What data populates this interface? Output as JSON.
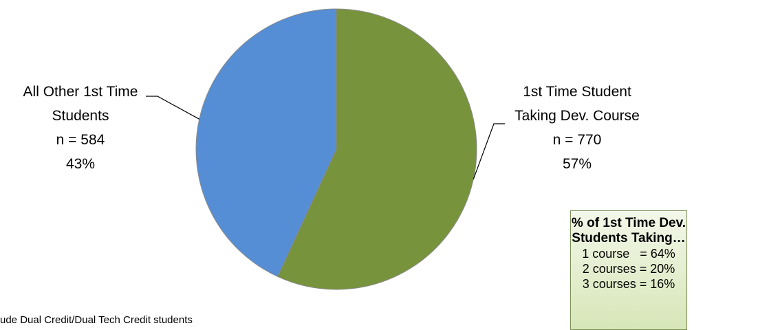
{
  "chart_data": {
    "type": "pie",
    "title": "",
    "slices": [
      {
        "label_lines": [
          "1st Time Student",
          "Taking Dev. Course"
        ],
        "n_text": "n = 770",
        "pct_text": "57%",
        "value": 770,
        "percent": 57,
        "color": "#77933c"
      },
      {
        "label_lines": [
          "All Other 1st Time",
          "Students"
        ],
        "n_text": "n = 584",
        "pct_text": "43%",
        "value": 584,
        "percent": 43,
        "color": "#558ed5"
      }
    ]
  },
  "footnote": "ude Dual Credit/Dual Tech Credit students",
  "summary_box": {
    "title_lines": [
      "% of 1st Time Dev.",
      "Students Taking…"
    ],
    "lines": [
      "1 course   = 64%",
      "2 courses = 20%",
      "3 courses = 16%"
    ]
  }
}
